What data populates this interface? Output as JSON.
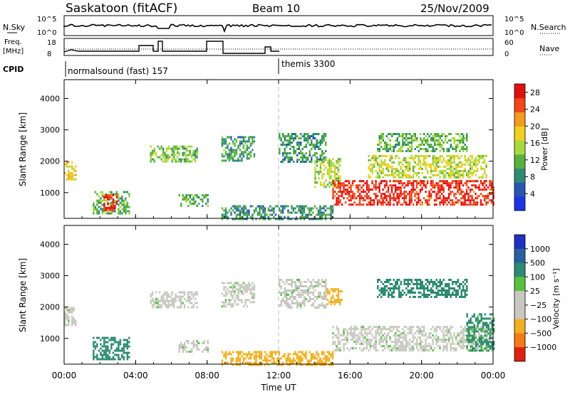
{
  "header": {
    "title": "Saskatoon (fitACF)",
    "beam": "Beam 10",
    "date": "25/Nov/2009"
  },
  "top_panels": {
    "nsky_label": "N.Sky",
    "nsearch_label": "N.Search",
    "freq_label_line1": "Freq.",
    "freq_label_line2": "[MHz]",
    "nave_label": "Nave",
    "cpid_label": "CPID",
    "n_ticks": [
      "10^5",
      "10^0"
    ],
    "freq_ticks": [
      "18",
      "8"
    ],
    "nave_ticks": [
      "60",
      "0"
    ],
    "modes": [
      {
        "name": "normalsound (fast) 157",
        "start_hour": 0
      },
      {
        "name": "themis 3300",
        "start_hour": 12.0
      }
    ]
  },
  "chart_data": [
    {
      "type": "heatmap",
      "panel": "power",
      "ylabel": "Slant Range [km]",
      "xlim_hours": [
        0,
        24
      ],
      "ylim_km": [
        180,
        4600
      ],
      "y_ticks": [
        1000,
        2000,
        3000,
        4000
      ],
      "x_tick_labels": [
        "00:00",
        "04:00",
        "08:00",
        "12:00",
        "16:00",
        "20:00",
        "00:00"
      ],
      "colorbar": {
        "label": "Power [dB]",
        "ticks": [
          4,
          8,
          12,
          16,
          20,
          24,
          28
        ],
        "range": [
          0,
          30
        ],
        "colors": [
          "#1f34e6",
          "#2a55b0",
          "#2f8a78",
          "#58b040",
          "#a8d840",
          "#f0d020",
          "#f59a20",
          "#f04818",
          "#e01010"
        ]
      },
      "echo_regions": [
        {
          "t0": 0.0,
          "t1": 0.6,
          "r0": 1400,
          "r1": 2000,
          "power": 18
        },
        {
          "t0": 1.6,
          "t1": 3.6,
          "r0": 350,
          "r1": 1050,
          "power": 12
        },
        {
          "t0": 2.2,
          "t1": 2.9,
          "r0": 450,
          "r1": 950,
          "power": 26
        },
        {
          "t0": 4.8,
          "t1": 7.4,
          "r0": 2000,
          "r1": 2500,
          "power": 13
        },
        {
          "t0": 6.4,
          "t1": 8.0,
          "r0": 600,
          "r1": 950,
          "power": 12
        },
        {
          "t0": 8.8,
          "t1": 10.6,
          "r0": 2050,
          "r1": 2800,
          "power": 10
        },
        {
          "t0": 8.8,
          "t1": 15.0,
          "r0": 180,
          "r1": 600,
          "power": 9
        },
        {
          "t0": 12.0,
          "t1": 14.6,
          "r0": 2000,
          "r1": 2900,
          "power": 9
        },
        {
          "t0": 14.0,
          "t1": 15.4,
          "r0": 1200,
          "r1": 2100,
          "power": 15
        },
        {
          "t0": 15.0,
          "t1": 24.0,
          "r0": 600,
          "r1": 1400,
          "power": 27
        },
        {
          "t0": 17.0,
          "t1": 23.6,
          "r0": 1500,
          "r1": 2200,
          "power": 16
        },
        {
          "t0": 17.5,
          "t1": 22.5,
          "r0": 2300,
          "r1": 2900,
          "power": 12
        }
      ]
    },
    {
      "type": "heatmap",
      "panel": "velocity",
      "ylabel": "Slant Range [km]",
      "xlabel": "Time UT",
      "xlim_hours": [
        0,
        24
      ],
      "ylim_km": [
        180,
        4600
      ],
      "y_ticks": [
        1000,
        2000,
        3000,
        4000
      ],
      "x_tick_labels": [
        "00:00",
        "04:00",
        "08:00",
        "12:00",
        "16:00",
        "20:00",
        "00:00"
      ],
      "colorbar": {
        "label": "Velocity [m s⁻¹]",
        "ticks": [
          "1000",
          "500",
          "100",
          "25",
          "−25",
          "−100",
          "−500",
          "−1000"
        ],
        "colors": [
          "#2030c0",
          "#2a60a0",
          "#2e8a70",
          "#58c040",
          "#c8c8c0",
          "#c8c8c0",
          "#f0b020",
          "#f57a18",
          "#e02010"
        ]
      },
      "echo_regions": [
        {
          "t0": 0.0,
          "t1": 0.6,
          "r0": 1400,
          "r1": 2000,
          "velocity": 0
        },
        {
          "t0": 1.6,
          "t1": 3.6,
          "r0": 350,
          "r1": 1050,
          "velocity": 150
        },
        {
          "t0": 4.8,
          "t1": 7.4,
          "r0": 2000,
          "r1": 2500,
          "velocity": 0
        },
        {
          "t0": 6.4,
          "t1": 8.0,
          "r0": 600,
          "r1": 950,
          "velocity": 0
        },
        {
          "t0": 8.8,
          "t1": 10.6,
          "r0": 2050,
          "r1": 2800,
          "velocity": 0
        },
        {
          "t0": 8.8,
          "t1": 15.0,
          "r0": 180,
          "r1": 600,
          "velocity": -150
        },
        {
          "t0": 12.0,
          "t1": 14.6,
          "r0": 2000,
          "r1": 2900,
          "velocity": 0
        },
        {
          "t0": 14.6,
          "t1": 15.5,
          "r0": 2100,
          "r1": 2600,
          "velocity": -400
        },
        {
          "t0": 15.0,
          "t1": 24.0,
          "r0": 600,
          "r1": 1400,
          "velocity": 0
        },
        {
          "t0": 22.5,
          "t1": 24.0,
          "r0": 600,
          "r1": 1800,
          "velocity": 120
        },
        {
          "t0": 17.5,
          "t1": 22.5,
          "r0": 2300,
          "r1": 2900,
          "velocity": 200
        }
      ]
    }
  ]
}
